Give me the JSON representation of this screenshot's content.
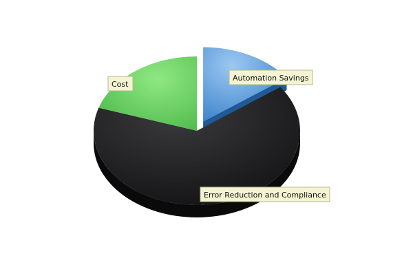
{
  "chart_data": {
    "type": "pie",
    "style": "3d-exploded",
    "legend": "none",
    "title": "",
    "slices": [
      {
        "label": "Automation Savings",
        "value": 15,
        "color": "#5b9bd5",
        "exploded": true
      },
      {
        "label": "Error Reduction and Compliance",
        "value": 65,
        "color": "#1c1c1e",
        "exploded": false
      },
      {
        "label": "Cost",
        "value": 20,
        "color": "#66cc55",
        "exploded": false
      }
    ]
  }
}
